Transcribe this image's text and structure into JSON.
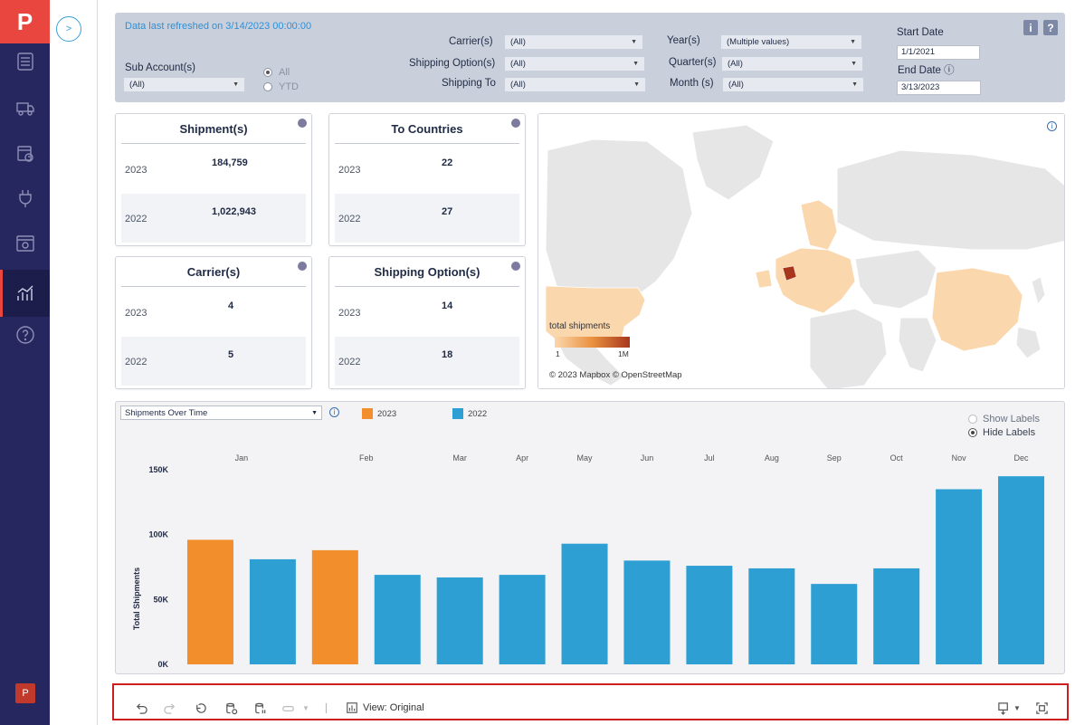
{
  "app": {
    "logo_glyph": "P"
  },
  "sidebar": {
    "items": [
      {
        "name": "sidebar-item-dashboard",
        "icon": "list-icon"
      },
      {
        "name": "sidebar-item-shipments",
        "icon": "truck-icon"
      },
      {
        "name": "sidebar-item-schedule",
        "icon": "calendar-clock-icon"
      },
      {
        "name": "sidebar-item-integrations",
        "icon": "plug-icon"
      },
      {
        "name": "sidebar-item-settings",
        "icon": "gear-window-icon"
      },
      {
        "name": "sidebar-item-analytics",
        "icon": "chart-icon"
      },
      {
        "name": "sidebar-item-help",
        "icon": "question-icon"
      }
    ],
    "active_index": 5,
    "expand_label": ">"
  },
  "filters": {
    "refresh_text": "Data last refreshed on 3/14/2023 00:00:00",
    "sub_account_label": "Sub Account(s)",
    "sub_account_value": "(All)",
    "radio_all": "All",
    "radio_ytd": "YTD",
    "carrier_label": "Carrier(s)",
    "carrier_value": "(All)",
    "shipping_option_label": "Shipping Option(s)",
    "shipping_option_value": "(All)",
    "shipping_to_label": "Shipping To",
    "shipping_to_value": "(All)",
    "year_label": "Year(s)",
    "year_value": "(Multiple values)",
    "quarter_label": "Quarter(s)",
    "quarter_value": "(All)",
    "month_label": "Month (s)",
    "month_value": "(All)",
    "start_date_label": "Start Date",
    "start_date_value": "1/1/2021",
    "end_date_label": "End Date ⓘ",
    "end_date_value": "3/13/2023",
    "info_btn": "i",
    "help_btn": "?"
  },
  "kpis": [
    {
      "title": "Shipment(s)",
      "rows": [
        {
          "year": "2023",
          "value": "184,759"
        },
        {
          "year": "2022",
          "value": "1,022,943"
        }
      ]
    },
    {
      "title": "To Countries",
      "rows": [
        {
          "year": "2023",
          "value": "22"
        },
        {
          "year": "2022",
          "value": "27"
        }
      ]
    },
    {
      "title": "Carrier(s)",
      "rows": [
        {
          "year": "2023",
          "value": "4"
        },
        {
          "year": "2022",
          "value": "5"
        }
      ]
    },
    {
      "title": "Shipping Option(s)",
      "rows": [
        {
          "year": "2023",
          "value": "14"
        },
        {
          "year": "2022",
          "value": "18"
        }
      ]
    }
  ],
  "map": {
    "legend_title": "total shipments",
    "legend_min": "1",
    "legend_max": "1M",
    "attribution": "© 2023 Mapbox © OpenStreetMap",
    "info_glyph": "i",
    "colors": {
      "low": "#fbd7ad",
      "mid": "#e9913f",
      "high": "#a7361d",
      "land": "#e6e6e6",
      "border": "#ffffff"
    }
  },
  "chart_selector": {
    "value": "Shipments Over Time",
    "info_glyph": "i"
  },
  "label_toggle": {
    "show": "Show Labels",
    "hide": "Hide Labels",
    "selected": "hide"
  },
  "chart_data": {
    "type": "bar",
    "categories": [
      "Jan",
      "Jan",
      "Feb",
      "Feb",
      "Mar",
      "Apr",
      "May",
      "Jun",
      "Jul",
      "Aug",
      "Sep",
      "Oct",
      "Nov",
      "Dec"
    ],
    "month_headers": [
      "Jan",
      "Feb",
      "Mar",
      "Apr",
      "May",
      "Jun",
      "Jul",
      "Aug",
      "Sep",
      "Oct",
      "Nov",
      "Dec"
    ],
    "series": [
      {
        "name": "2023",
        "color": "#f28e2b",
        "values": [
          96000,
          null,
          88000,
          null,
          null,
          null,
          null,
          null,
          null,
          null,
          null,
          null,
          null,
          null
        ]
      },
      {
        "name": "2022",
        "color": "#2e9fd3",
        "values": [
          null,
          81000,
          null,
          69000,
          67000,
          69000,
          93000,
          80000,
          76000,
          74000,
          62000,
          74000,
          135000,
          145000
        ]
      }
    ],
    "ylabel": "Total Shipments",
    "yticks": [
      {
        "v": 0,
        "label": "0K"
      },
      {
        "v": 50000,
        "label": "50K"
      },
      {
        "v": 100000,
        "label": "100K"
      },
      {
        "v": 150000,
        "label": "150K"
      }
    ],
    "ylim": [
      0,
      150000
    ],
    "legend_position": "top-left"
  },
  "toolbar": {
    "view_label": "View: Original",
    "icons": [
      "undo-icon",
      "redo-icon",
      "revert-icon",
      "refresh-data-icon",
      "pause-data-icon",
      "share-icon",
      "view-icon",
      "download-icon",
      "fullscreen-icon"
    ]
  }
}
